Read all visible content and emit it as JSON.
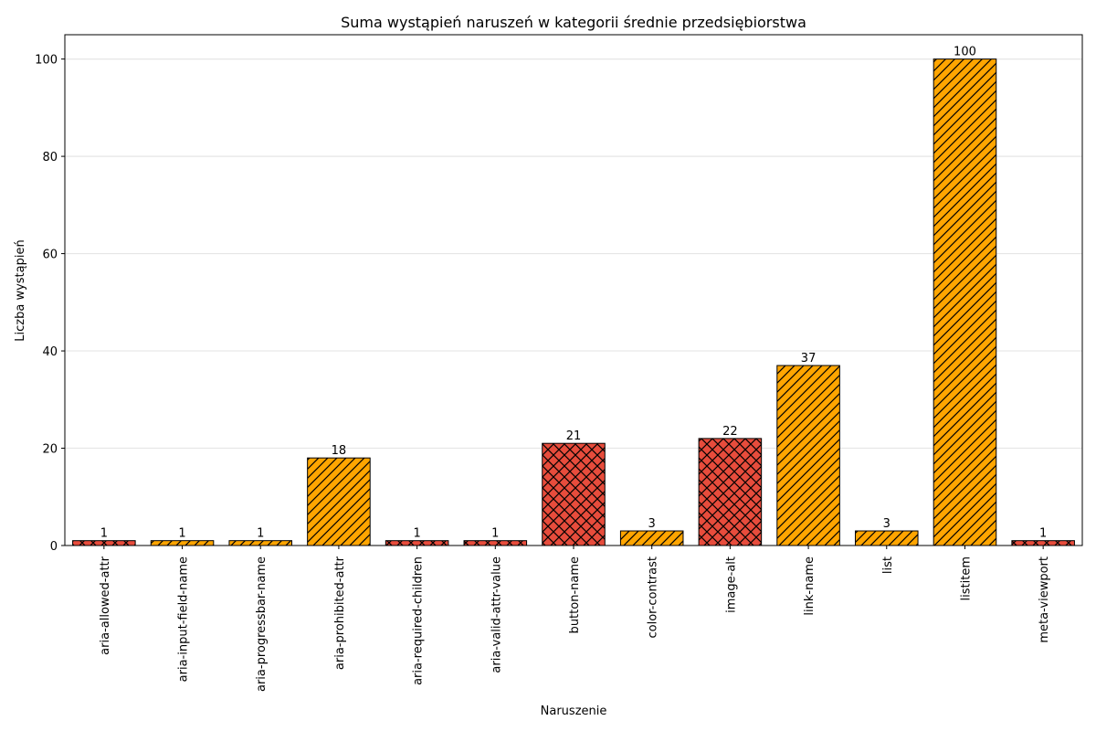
{
  "chart_data": {
    "type": "bar",
    "title": "Suma wystąpień naruszeń w kategorii średnie przedsiębiorstwa",
    "xlabel": "Naruszenie",
    "ylabel": "Liczba wystąpień",
    "ylim": [
      0,
      105
    ],
    "yticks": [
      0,
      20,
      40,
      60,
      80,
      100
    ],
    "grid": "y",
    "categories": [
      "aria-allowed-attr",
      "aria-input-field-name",
      "aria-progressbar-name",
      "aria-prohibited-attr",
      "aria-required-children",
      "aria-valid-attr-value",
      "button-name",
      "color-contrast",
      "image-alt",
      "link-name",
      "list",
      "listitem",
      "meta-viewport"
    ],
    "values": [
      1,
      1,
      1,
      18,
      1,
      1,
      21,
      3,
      22,
      37,
      3,
      100,
      1
    ],
    "bar_styles": [
      "red-crosshatch",
      "orange-diagonal",
      "orange-diagonal",
      "orange-diagonal",
      "red-crosshatch",
      "red-crosshatch",
      "red-crosshatch",
      "orange-diagonal",
      "red-crosshatch",
      "orange-diagonal",
      "orange-diagonal",
      "orange-diagonal",
      "red-crosshatch"
    ],
    "colors": {
      "red-crosshatch": "#e74c3c",
      "orange-diagonal": "#ffa500",
      "grid": "#e6e6e6",
      "edge": "#000000"
    }
  }
}
